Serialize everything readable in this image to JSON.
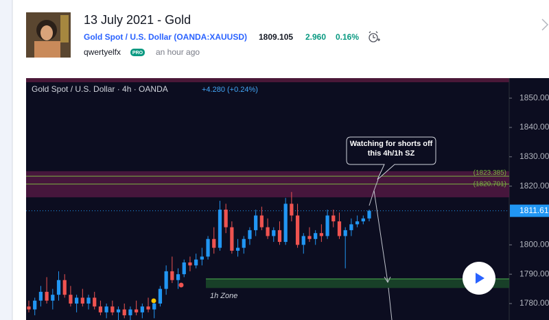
{
  "header": {
    "title": "13 July 2021 - Gold",
    "symbol": "Gold Spot / U.S. Dollar (OANDA:XAUUSD)",
    "price": "1809.105",
    "change": "2.960",
    "change_pct": "0.16%",
    "author": "qwertyelfx",
    "badge": "PRO",
    "time": "an hour ago"
  },
  "chart_data": {
    "type": "candlestick",
    "title": "Gold Spot / U.S. Dollar · 4h · OANDA",
    "change_text": "+4.280 (+0.24%)",
    "ylim": [
      1774.4,
      1856.8
    ],
    "yticks": [
      {
        "value": 1850,
        "label": "1850.00"
      },
      {
        "value": 1840,
        "label": "1840.00"
      },
      {
        "value": 1830,
        "label": "1830.00"
      },
      {
        "value": 1820,
        "label": "1820.00"
      },
      {
        "value": 1800,
        "label": "1800.00"
      },
      {
        "value": 1790,
        "label": "1790.00"
      },
      {
        "value": 1780,
        "label": "1780.00"
      }
    ],
    "last_price": 1811.61,
    "up_color": "#2196f3",
    "down_color": "#ef5350",
    "levels": [
      {
        "value": 1823.385,
        "label": "(1823.385)"
      },
      {
        "value": 1820.701,
        "label": "(1820.701)"
      }
    ],
    "supply_zone": [
      1816.2,
      1825.1
    ],
    "demand_zone": [
      1785.3,
      1788.4
    ],
    "zone_label": "1h Zone",
    "annotation": "Watching for shorts off this 4h/1h SZ",
    "ohlc": [
      [
        1779,
        1781,
        1777,
        1778
      ],
      [
        1778,
        1782,
        1776,
        1781
      ],
      [
        1781,
        1786,
        1779,
        1784
      ],
      [
        1784,
        1789,
        1780,
        1781
      ],
      [
        1781,
        1785,
        1778,
        1783
      ],
      [
        1783,
        1791,
        1781,
        1788
      ],
      [
        1788,
        1790,
        1782,
        1783
      ],
      [
        1783,
        1786,
        1779,
        1780
      ],
      [
        1780,
        1783,
        1777,
        1782
      ],
      [
        1782,
        1785,
        1779,
        1780
      ],
      [
        1780,
        1783,
        1778,
        1782
      ],
      [
        1782,
        1784,
        1778,
        1779
      ],
      [
        1779,
        1781,
        1776,
        1777
      ],
      [
        1777,
        1780,
        1775,
        1779
      ],
      [
        1779,
        1781,
        1776,
        1777
      ],
      [
        1777,
        1779,
        1774,
        1778
      ],
      [
        1778,
        1780,
        1775,
        1776
      ],
      [
        1776,
        1779,
        1774,
        1778
      ],
      [
        1778,
        1781,
        1776,
        1777
      ],
      [
        1777,
        1780,
        1775,
        1779
      ],
      [
        1779,
        1782,
        1777,
        1778
      ],
      [
        1778,
        1781,
        1775,
        1780
      ],
      [
        1780,
        1786,
        1779,
        1785
      ],
      [
        1785,
        1793,
        1783,
        1791
      ],
      [
        1791,
        1796,
        1787,
        1788
      ],
      [
        1788,
        1792,
        1785,
        1790
      ],
      [
        1790,
        1795,
        1789,
        1794
      ],
      [
        1794,
        1796,
        1791,
        1793
      ],
      [
        1793,
        1797,
        1792,
        1795
      ],
      [
        1795,
        1799,
        1793,
        1796
      ],
      [
        1796,
        1803,
        1795,
        1802
      ],
      [
        1802,
        1806,
        1797,
        1799
      ],
      [
        1799,
        1815,
        1798,
        1812
      ],
      [
        1812,
        1814,
        1804,
        1806
      ],
      [
        1806,
        1808,
        1797,
        1798
      ],
      [
        1798,
        1802,
        1796,
        1799
      ],
      [
        1799,
        1803,
        1797,
        1802
      ],
      [
        1802,
        1806,
        1800,
        1805
      ],
      [
        1805,
        1812,
        1803,
        1810
      ],
      [
        1810,
        1813,
        1805,
        1806
      ],
      [
        1806,
        1809,
        1802,
        1803
      ],
      [
        1803,
        1806,
        1801,
        1805
      ],
      [
        1805,
        1808,
        1800,
        1801
      ],
      [
        1801,
        1816,
        1800,
        1814
      ],
      [
        1814,
        1818,
        1808,
        1810
      ],
      [
        1810,
        1814,
        1799,
        1800
      ],
      [
        1800,
        1804,
        1797,
        1803
      ],
      [
        1803,
        1806,
        1801,
        1802
      ],
      [
        1802,
        1805,
        1800,
        1804
      ],
      [
        1804,
        1807,
        1801,
        1803
      ],
      [
        1803,
        1812,
        1802,
        1810
      ],
      [
        1810,
        1812,
        1806,
        1808
      ],
      [
        1808,
        1811,
        1802,
        1803
      ],
      [
        1803,
        1806,
        1792,
        1805
      ],
      [
        1805,
        1809,
        1803,
        1807
      ],
      [
        1807,
        1810,
        1806,
        1808
      ],
      [
        1808,
        1810,
        1807,
        1809
      ],
      [
        1809,
        1812,
        1808,
        1811.61
      ]
    ]
  }
}
